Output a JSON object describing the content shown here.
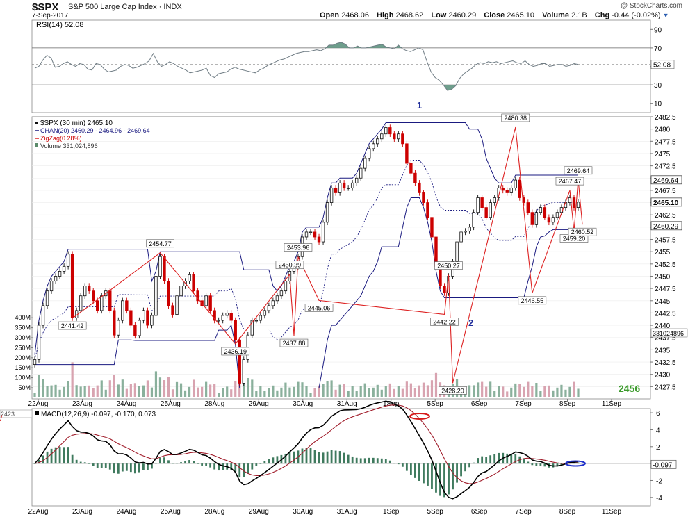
{
  "header": {
    "symbol": "$SPX",
    "name": "S&P 500 Large Cap Index",
    "exchange": "INDX",
    "date": "7-Sep-2017",
    "watermark": "@ StockCharts.com",
    "open_label": "Open",
    "open": "2468.06",
    "high_label": "High",
    "high": "2468.62",
    "low_label": "Low",
    "low": "2460.29",
    "close_label": "Close",
    "close": "2465.10",
    "volume_label": "Volume",
    "volume": "2.1B",
    "chg_label": "Chg",
    "chg": "-0.44 (-0.02%)"
  },
  "colors": {
    "up": "#111111",
    "down": "#cc0000",
    "channel": "#1a1a80",
    "zigzag": "#dd2222",
    "rsi_fill": "#6e9e8c",
    "macd_line": "#000000",
    "signal_line": "#a01c2a",
    "hist": "#3f7a5e",
    "annotation": "#1d2b9a",
    "cnt": "#3a9a2a"
  },
  "chart_data": [
    {
      "type": "line",
      "panel": "RSI",
      "title": "RSI(14) 52.08",
      "last": 52.08,
      "ylim": [
        0,
        100
      ],
      "y_ticks": [
        10,
        30,
        50,
        70,
        90
      ],
      "levels": [
        70,
        30
      ],
      "values": [
        48,
        50,
        57,
        62,
        59,
        49,
        50,
        53,
        55,
        52,
        50,
        53,
        52,
        47,
        46,
        53,
        52,
        47,
        44,
        45,
        46,
        50,
        52,
        51,
        48,
        49,
        51,
        53,
        56,
        64,
        55,
        50,
        52,
        55,
        53,
        50,
        48,
        46,
        43,
        44,
        45,
        46,
        48,
        40,
        38,
        42,
        43,
        44,
        47,
        49,
        47,
        46,
        45,
        44,
        43,
        46,
        48,
        51,
        53,
        55,
        57,
        58,
        60,
        62,
        64,
        65,
        66,
        66,
        67,
        68,
        67,
        69,
        73,
        73,
        75,
        76,
        74,
        70,
        70,
        72,
        70,
        70,
        71,
        72,
        73,
        74,
        71,
        70,
        69,
        73,
        69,
        67,
        66,
        68,
        70,
        68,
        55,
        44,
        38,
        35,
        30,
        24,
        25,
        29,
        37,
        42,
        45,
        48,
        52,
        54,
        53,
        55,
        54,
        55,
        53,
        54,
        55,
        56,
        54,
        53,
        56,
        52,
        50,
        51,
        53,
        53,
        50,
        51,
        52,
        52,
        50,
        51,
        53,
        52
      ]
    },
    {
      "type": "candlestick",
      "panel": "price",
      "title": "$SPX (30 min) 2465.10",
      "legend": [
        "CHAN(20) 2460.29 - 2464.96 - 2469.64",
        "ZigZag(0.28%)",
        "Volume 331,024,896"
      ],
      "ylim": [
        2425,
        2482.5
      ],
      "y_ticks": [
        2427.5,
        2430,
        2432.5,
        2435,
        2437.5,
        2440,
        2442.5,
        2445,
        2447.5,
        2450,
        2452.5,
        2455,
        2457.5,
        2460,
        2462.5,
        2465,
        2467.5,
        2470,
        2472.5,
        2475,
        2477.5,
        2480,
        2482.5
      ],
      "x_labels": [
        "22Aug",
        "23Aug",
        "24Aug",
        "25Aug",
        "28Aug",
        "29Aug",
        "30Aug",
        "31Aug",
        "1Sep",
        "5Sep",
        "6Sep",
        "7Sep",
        "8Sep",
        "11Sep"
      ],
      "closes": [
        2433,
        2440,
        2444,
        2447,
        2449,
        2450,
        2451,
        2452,
        2454.5,
        2441.5,
        2443,
        2446,
        2448,
        2447,
        2445,
        2443,
        2446,
        2447,
        2443,
        2438,
        2441,
        2445,
        2443,
        2440,
        2437.9,
        2441,
        2443,
        2440,
        2442,
        2450,
        2454,
        2449,
        2444,
        2442.2,
        2446,
        2448,
        2449,
        2450.3,
        2447,
        2445,
        2444,
        2446,
        2443,
        2441,
        2441,
        2442,
        2442.5,
        2441,
        2437,
        2428.2,
        2433,
        2438,
        2441,
        2441,
        2442,
        2443,
        2444,
        2445,
        2446,
        2447,
        2449,
        2451,
        2452,
        2454,
        2458,
        2459,
        2459,
        2458,
        2457,
        2461,
        2465,
        2468,
        2467,
        2469,
        2468,
        2468,
        2469,
        2470,
        2472,
        2474,
        2476,
        2477,
        2478,
        2479,
        2480.3,
        2479,
        2478,
        2479,
        2477,
        2473,
        2471,
        2469,
        2467,
        2465,
        2462,
        2458,
        2452,
        2448,
        2446.6,
        2450,
        2453,
        2457,
        2459,
        2459.2,
        2460,
        2463,
        2466,
        2464,
        2462,
        2465,
        2466,
        2468,
        2467.5,
        2467,
        2468,
        2469.6,
        2466,
        2465,
        2463,
        2460.5,
        2463,
        2464,
        2462,
        2461,
        2462,
        2463,
        2464,
        2465,
        2466,
        2464,
        2465.1
      ],
      "zigzag": [
        {
          "label": "2441.42",
          "value": 2441.42
        },
        {
          "label": "2454.77",
          "value": 2454.77
        },
        {
          "label": "2436.19",
          "value": 2436.19
        },
        {
          "label": "2450.39",
          "value": 2450.39
        },
        {
          "label": "2437.88",
          "value": 2437.88
        },
        {
          "label": "2453.96",
          "value": 2453.96
        },
        {
          "label": "2445.06",
          "value": 2445.06
        },
        {
          "label": "2442.22",
          "value": 2442.22
        },
        {
          "label": "2450.27",
          "value": 2450.27
        },
        {
          "label": "2428.20",
          "value": 2428.2
        },
        {
          "label": "2480.38",
          "value": 2480.38
        },
        {
          "label": "2446.55",
          "value": 2446.55
        },
        {
          "label": "2467.47",
          "value": 2467.47
        },
        {
          "label": "2459.20",
          "value": 2459.2
        },
        {
          "label": "2469.64",
          "value": 2469.64
        },
        {
          "label": "2460.52",
          "value": 2460.52
        }
      ],
      "channel": {
        "upper": 2469.64,
        "middle": 2464.96,
        "lower": 2460.29
      },
      "right_tags": [
        "2469.64",
        "2465.10",
        "2460.29"
      ],
      "volume_tag": "331024896",
      "annotations": [
        "1",
        "2"
      ],
      "count": "2456",
      "volume_ticks": [
        "50M",
        "100M",
        "150M",
        "200M",
        "250M",
        "300M",
        "350M",
        "400M"
      ]
    },
    {
      "type": "line",
      "panel": "MACD",
      "title": "MACD(12,26,9) -0.097, -0.170, 0.073",
      "left_tag": "2423",
      "ylim": [
        -5,
        6.5
      ],
      "y_ticks": [
        -4,
        -2,
        0,
        2,
        4,
        6
      ],
      "last_tag": "-0.097",
      "macd": -0.097,
      "signal": -0.17,
      "histogram": 0.073
    }
  ]
}
